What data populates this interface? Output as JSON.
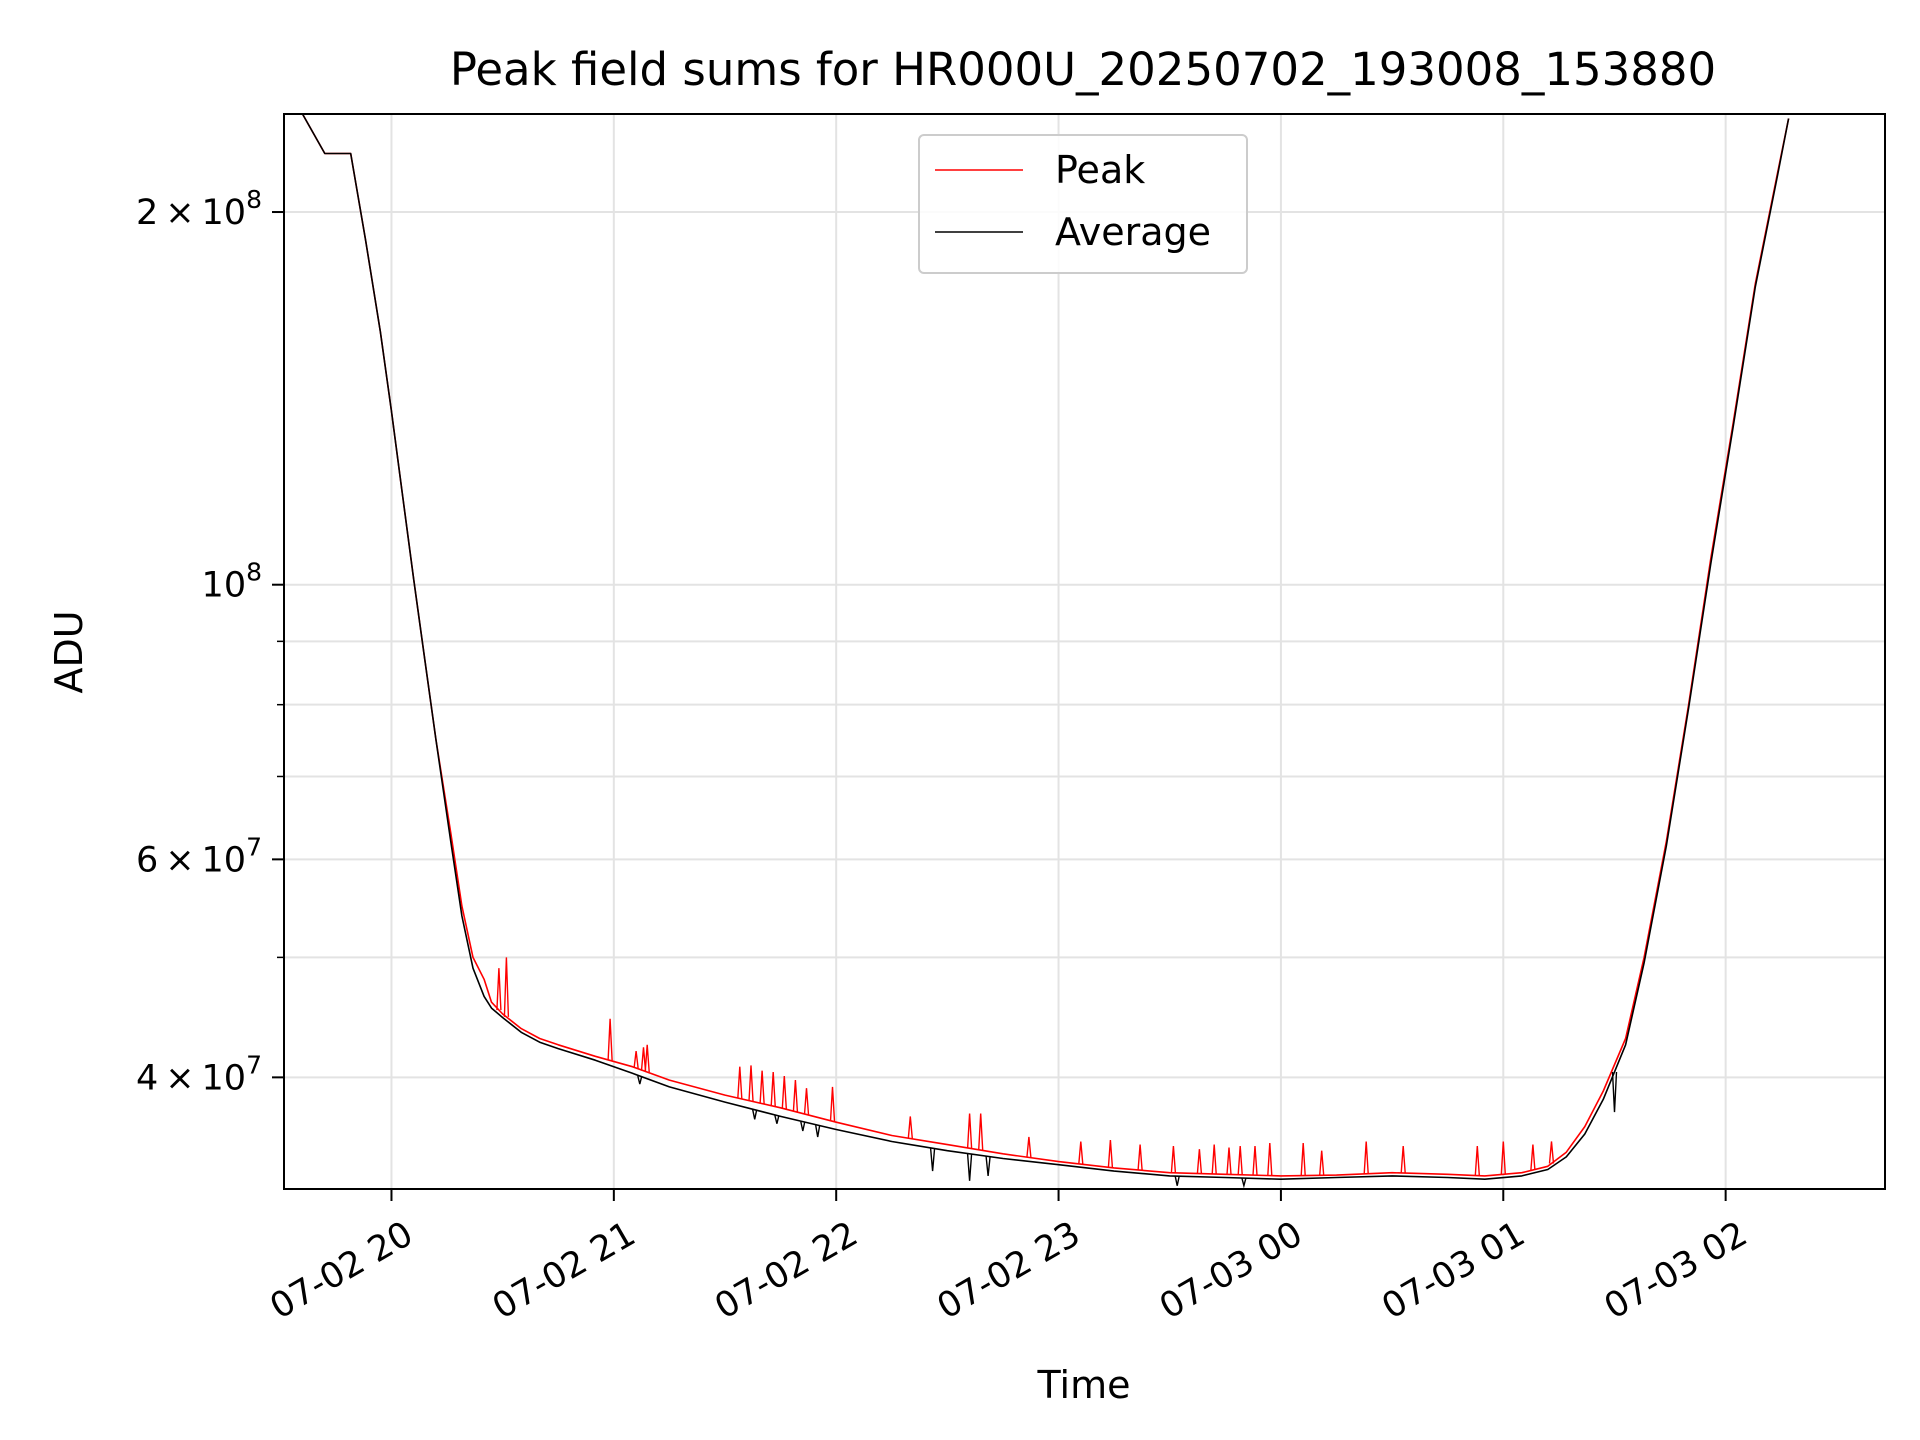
{
  "chart_data": {
    "type": "line",
    "title": "Peak field sums for HR000U_20250702_193008_153880",
    "xlabel": "Time",
    "ylabel": "ADU",
    "yscale": "log",
    "ylim": [
      32500000,
      240000000
    ],
    "xlim": [
      "2025-07-02 19:31",
      "2025-07-03 02:43"
    ],
    "grid": true,
    "legend": {
      "placement": "top-center",
      "entries": [
        "Peak",
        "Average"
      ]
    },
    "x_ticks": [
      {
        "label": "07-02 20",
        "time": "2025-07-02 20:00"
      },
      {
        "label": "07-02 21",
        "time": "2025-07-02 21:00"
      },
      {
        "label": "07-02 22",
        "time": "2025-07-02 22:00"
      },
      {
        "label": "07-02 23",
        "time": "2025-07-02 23:00"
      },
      {
        "label": "07-03 00",
        "time": "2025-07-03 00:00"
      },
      {
        "label": "07-03 01",
        "time": "2025-07-03 01:00"
      },
      {
        "label": "07-03 02",
        "time": "2025-07-03 02:00"
      }
    ],
    "y_major_ticks": [
      {
        "value": 40000000,
        "mantissa": "4",
        "exponent": "7"
      },
      {
        "value": 60000000,
        "mantissa": "6",
        "exponent": "7"
      },
      {
        "value": 100000000,
        "mantissa": "",
        "exponent": "8"
      },
      {
        "value": 200000000,
        "mantissa": "2",
        "exponent": "8"
      }
    ],
    "y_minor_ticks": [
      50000000,
      70000000,
      80000000,
      90000000
    ],
    "series": [
      {
        "name": "Peak",
        "color": "#ff0000",
        "points": [
          [
            "2025-07-02 19:36",
            240000000
          ],
          [
            "2025-07-02 19:42",
            223000000
          ],
          [
            "2025-07-02 19:49",
            223000000
          ],
          [
            "2025-07-02 19:53",
            190000000
          ],
          [
            "2025-07-02 19:57",
            160000000
          ],
          [
            "2025-07-02 20:00",
            138000000
          ],
          [
            "2025-07-02 20:03",
            118000000
          ],
          [
            "2025-07-02 20:06",
            101000000
          ],
          [
            "2025-07-02 20:09",
            87000000
          ],
          [
            "2025-07-02 20:12",
            75000000
          ],
          [
            "2025-07-02 20:16",
            63000000
          ],
          [
            "2025-07-02 20:19",
            55000000
          ],
          [
            "2025-07-02 20:22",
            50000000
          ],
          [
            "2025-07-02 20:25",
            48000000
          ],
          [
            "2025-07-02 20:27",
            46000000
          ],
          [
            "2025-07-02 20:30",
            45000000
          ],
          [
            "2025-07-02 20:35",
            43800000
          ],
          [
            "2025-07-02 20:40",
            43000000
          ],
          [
            "2025-07-02 20:45",
            42500000
          ],
          [
            "2025-07-02 20:55",
            41600000
          ],
          [
            "2025-07-02 21:05",
            40800000
          ],
          [
            "2025-07-02 21:15",
            39800000
          ],
          [
            "2025-07-02 21:30",
            38700000
          ],
          [
            "2025-07-02 21:45",
            37800000
          ],
          [
            "2025-07-02 22:00",
            36800000
          ],
          [
            "2025-07-02 22:15",
            35900000
          ],
          [
            "2025-07-02 22:30",
            35300000
          ],
          [
            "2025-07-02 22:45",
            34700000
          ],
          [
            "2025-07-02 23:00",
            34200000
          ],
          [
            "2025-07-02 23:15",
            33800000
          ],
          [
            "2025-07-02 23:30",
            33500000
          ],
          [
            "2025-07-02 23:45",
            33400000
          ],
          [
            "2025-07-03 00:00",
            33300000
          ],
          [
            "2025-07-03 00:15",
            33350000
          ],
          [
            "2025-07-03 00:30",
            33500000
          ],
          [
            "2025-07-03 00:45",
            33400000
          ],
          [
            "2025-07-03 00:55",
            33300000
          ],
          [
            "2025-07-03 01:05",
            33500000
          ],
          [
            "2025-07-03 01:12",
            33900000
          ],
          [
            "2025-07-03 01:17",
            34800000
          ],
          [
            "2025-07-03 01:22",
            36500000
          ],
          [
            "2025-07-03 01:27",
            39000000
          ],
          [
            "2025-07-03 01:33",
            43000000
          ],
          [
            "2025-07-03 01:38",
            50000000
          ],
          [
            "2025-07-03 01:44",
            62000000
          ],
          [
            "2025-07-03 01:50",
            80000000
          ],
          [
            "2025-07-03 01:56",
            105000000
          ],
          [
            "2025-07-03 02:02",
            135000000
          ],
          [
            "2025-07-03 02:08",
            175000000
          ],
          [
            "2025-07-03 02:14",
            215000000
          ],
          [
            "2025-07-03 02:17",
            238000000
          ]
        ],
        "spikes": [
          [
            "2025-07-02 20:29",
            49000000
          ],
          [
            "2025-07-02 20:31",
            50000000
          ],
          [
            "2025-07-02 20:59",
            44600000
          ],
          [
            "2025-07-02 21:06",
            42000000
          ],
          [
            "2025-07-02 21:08",
            42300000
          ],
          [
            "2025-07-02 21:09",
            42500000
          ],
          [
            "2025-07-02 21:34",
            40800000
          ],
          [
            "2025-07-02 21:37",
            40900000
          ],
          [
            "2025-07-02 21:40",
            40500000
          ],
          [
            "2025-07-02 21:43",
            40400000
          ],
          [
            "2025-07-02 21:46",
            40100000
          ],
          [
            "2025-07-02 21:49",
            39800000
          ],
          [
            "2025-07-02 21:52",
            39200000
          ],
          [
            "2025-07-02 21:59",
            39300000
          ],
          [
            "2025-07-02 22:20",
            37200000
          ],
          [
            "2025-07-02 22:36",
            37400000
          ],
          [
            "2025-07-02 22:39",
            37400000
          ],
          [
            "2025-07-02 22:52",
            35800000
          ],
          [
            "2025-07-02 23:06",
            35500000
          ],
          [
            "2025-07-02 23:14",
            35600000
          ],
          [
            "2025-07-02 23:22",
            35300000
          ],
          [
            "2025-07-02 23:31",
            35200000
          ],
          [
            "2025-07-02 23:38",
            35000000
          ],
          [
            "2025-07-02 23:42",
            35300000
          ],
          [
            "2025-07-02 23:46",
            35100000
          ],
          [
            "2025-07-02 23:49",
            35200000
          ],
          [
            "2025-07-02 23:53",
            35200000
          ],
          [
            "2025-07-02 23:57",
            35400000
          ],
          [
            "2025-07-03 00:06",
            35400000
          ],
          [
            "2025-07-03 00:11",
            34900000
          ],
          [
            "2025-07-03 00:23",
            35500000
          ],
          [
            "2025-07-03 00:33",
            35200000
          ],
          [
            "2025-07-03 00:53",
            35200000
          ],
          [
            "2025-07-03 01:00",
            35500000
          ],
          [
            "2025-07-03 01:08",
            35300000
          ],
          [
            "2025-07-03 01:13",
            35500000
          ]
        ]
      },
      {
        "name": "Average",
        "color": "#000000",
        "points": [
          [
            "2025-07-02 19:36",
            240000000
          ],
          [
            "2025-07-02 19:42",
            223000000
          ],
          [
            "2025-07-02 19:49",
            223000000
          ],
          [
            "2025-07-02 19:53",
            190000000
          ],
          [
            "2025-07-02 19:57",
            160000000
          ],
          [
            "2025-07-02 20:00",
            138000000
          ],
          [
            "2025-07-02 20:03",
            118000000
          ],
          [
            "2025-07-02 20:06",
            101000000
          ],
          [
            "2025-07-02 20:09",
            87000000
          ],
          [
            "2025-07-02 20:12",
            75000000
          ],
          [
            "2025-07-02 20:16",
            62000000
          ],
          [
            "2025-07-02 20:19",
            54000000
          ],
          [
            "2025-07-02 20:22",
            49000000
          ],
          [
            "2025-07-02 20:25",
            46500000
          ],
          [
            "2025-07-02 20:27",
            45500000
          ],
          [
            "2025-07-02 20:30",
            44700000
          ],
          [
            "2025-07-02 20:35",
            43500000
          ],
          [
            "2025-07-02 20:40",
            42700000
          ],
          [
            "2025-07-02 20:45",
            42200000
          ],
          [
            "2025-07-02 20:55",
            41300000
          ],
          [
            "2025-07-02 21:05",
            40300000
          ],
          [
            "2025-07-02 21:15",
            39300000
          ],
          [
            "2025-07-02 21:30",
            38200000
          ],
          [
            "2025-07-02 21:45",
            37200000
          ],
          [
            "2025-07-02 22:00",
            36300000
          ],
          [
            "2025-07-02 22:15",
            35500000
          ],
          [
            "2025-07-02 22:30",
            34900000
          ],
          [
            "2025-07-02 22:45",
            34400000
          ],
          [
            "2025-07-02 23:00",
            34000000
          ],
          [
            "2025-07-02 23:15",
            33600000
          ],
          [
            "2025-07-02 23:30",
            33300000
          ],
          [
            "2025-07-02 23:45",
            33200000
          ],
          [
            "2025-07-03 00:00",
            33100000
          ],
          [
            "2025-07-03 00:15",
            33200000
          ],
          [
            "2025-07-03 00:30",
            33300000
          ],
          [
            "2025-07-03 00:45",
            33200000
          ],
          [
            "2025-07-03 00:55",
            33100000
          ],
          [
            "2025-07-03 01:05",
            33300000
          ],
          [
            "2025-07-03 01:12",
            33700000
          ],
          [
            "2025-07-03 01:17",
            34500000
          ],
          [
            "2025-07-03 01:22",
            36000000
          ],
          [
            "2025-07-03 01:27",
            38400000
          ],
          [
            "2025-07-03 01:33",
            42500000
          ],
          [
            "2025-07-03 01:38",
            49500000
          ],
          [
            "2025-07-03 01:44",
            61500000
          ],
          [
            "2025-07-03 01:50",
            79500000
          ],
          [
            "2025-07-03 01:56",
            104000000
          ],
          [
            "2025-07-03 02:02",
            134000000
          ],
          [
            "2025-07-03 02:08",
            174000000
          ],
          [
            "2025-07-03 02:14",
            214000000
          ],
          [
            "2025-07-03 02:17",
            238000000
          ]
        ],
        "spikes": [
          [
            "2025-07-02 21:07",
            39500000
          ],
          [
            "2025-07-02 21:38",
            37000000
          ],
          [
            "2025-07-02 21:44",
            36700000
          ],
          [
            "2025-07-02 21:51",
            36200000
          ],
          [
            "2025-07-02 21:55",
            35800000
          ],
          [
            "2025-07-02 22:26",
            33600000
          ],
          [
            "2025-07-02 22:36",
            33000000
          ],
          [
            "2025-07-02 22:41",
            33300000
          ],
          [
            "2025-07-02 23:32",
            32700000
          ],
          [
            "2025-07-02 23:50",
            32700000
          ],
          [
            "2025-07-03 01:30",
            37500000
          ]
        ]
      }
    ]
  }
}
